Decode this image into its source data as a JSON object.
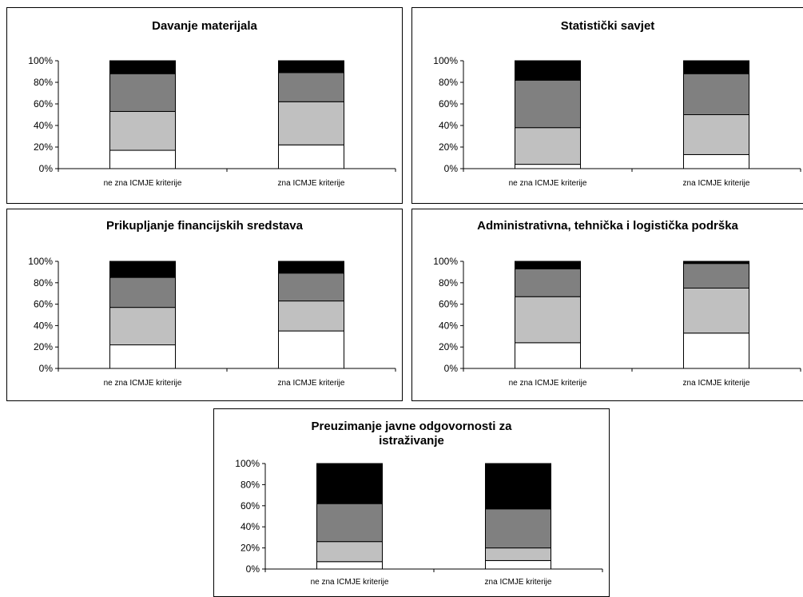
{
  "chart_data": [
    {
      "type": "bar",
      "stacked": "percent",
      "title": "Davanje materijala",
      "categories": [
        "ne zna ICMJE kriterije",
        "zna ICMJE kriterije"
      ],
      "series": [
        {
          "values": [
            17,
            22
          ],
          "color": "#ffffff"
        },
        {
          "values": [
            36,
            40
          ],
          "color": "#c0c0c0"
        },
        {
          "values": [
            35,
            27
          ],
          "color": "#808080"
        },
        {
          "values": [
            12,
            11
          ],
          "color": "#000000"
        }
      ],
      "ylim": [
        0,
        100
      ],
      "yticks": [
        "0%",
        "20%",
        "40%",
        "60%",
        "80%",
        "100%"
      ],
      "grid": false,
      "legend": "none"
    },
    {
      "type": "bar",
      "stacked": "percent",
      "title": "Statistički savjet",
      "categories": [
        "ne zna ICMJE kriterije",
        "zna ICMJE kriterije"
      ],
      "series": [
        {
          "values": [
            4,
            13
          ],
          "color": "#ffffff"
        },
        {
          "values": [
            34,
            37
          ],
          "color": "#c0c0c0"
        },
        {
          "values": [
            44,
            38
          ],
          "color": "#808080"
        },
        {
          "values": [
            18,
            12
          ],
          "color": "#000000"
        }
      ],
      "ylim": [
        0,
        100
      ],
      "yticks": [
        "0%",
        "20%",
        "40%",
        "60%",
        "80%",
        "100%"
      ],
      "grid": false,
      "legend": "none"
    },
    {
      "type": "bar",
      "stacked": "percent",
      "title": "Prikupljanje financijskih sredstava",
      "categories": [
        "ne zna ICMJE kriterije",
        "zna ICMJE kriterije"
      ],
      "series": [
        {
          "values": [
            22,
            35
          ],
          "color": "#ffffff"
        },
        {
          "values": [
            35,
            28
          ],
          "color": "#c0c0c0"
        },
        {
          "values": [
            28,
            26
          ],
          "color": "#808080"
        },
        {
          "values": [
            15,
            11
          ],
          "color": "#000000"
        }
      ],
      "ylim": [
        0,
        100
      ],
      "yticks": [
        "0%",
        "20%",
        "40%",
        "60%",
        "80%",
        "100%"
      ],
      "grid": false,
      "legend": "none"
    },
    {
      "type": "bar",
      "stacked": "percent",
      "title": "Administrativna, tehnička i logistička podrška",
      "categories": [
        "ne zna ICMJE kriterije",
        "zna ICMJE kriterije"
      ],
      "series": [
        {
          "values": [
            24,
            33
          ],
          "color": "#ffffff"
        },
        {
          "values": [
            43,
            42
          ],
          "color": "#c0c0c0"
        },
        {
          "values": [
            26,
            23
          ],
          "color": "#808080"
        },
        {
          "values": [
            7,
            2
          ],
          "color": "#000000"
        }
      ],
      "ylim": [
        0,
        100
      ],
      "yticks": [
        "0%",
        "20%",
        "40%",
        "60%",
        "80%",
        "100%"
      ],
      "grid": false,
      "legend": "none"
    },
    {
      "type": "bar",
      "stacked": "percent",
      "title": "Preuzimanje javne odgovornosti za istraživanje",
      "title_lines": [
        "Preuzimanje javne odgovornosti za",
        "istraživanje"
      ],
      "categories": [
        "ne zna ICMJE kriterije",
        "zna ICMJE kriterije"
      ],
      "series": [
        {
          "values": [
            7,
            8
          ],
          "color": "#ffffff"
        },
        {
          "values": [
            19,
            12
          ],
          "color": "#c0c0c0"
        },
        {
          "values": [
            36,
            37
          ],
          "color": "#808080"
        },
        {
          "values": [
            38,
            43
          ],
          "color": "#000000"
        }
      ],
      "ylim": [
        0,
        100
      ],
      "yticks": [
        "0%",
        "20%",
        "40%",
        "60%",
        "80%",
        "100%"
      ],
      "grid": false,
      "legend": "none"
    }
  ]
}
